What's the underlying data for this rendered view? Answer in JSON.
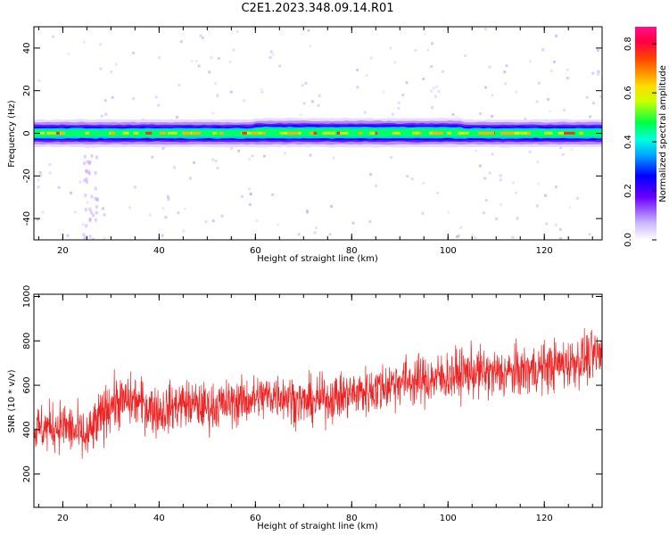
{
  "figure_title": "C2E1.2023.348.09.14.R01",
  "colors": {
    "snr_line": "#ee2222",
    "axis": "#000000"
  },
  "chart_data": [
    {
      "type": "heatmap",
      "xlabel": "Height of straight line (km)",
      "ylabel": "Frequency (Hz)",
      "xlim": [
        14,
        132
      ],
      "ylim": [
        -50,
        50
      ],
      "x_ticks": [
        20,
        40,
        60,
        80,
        100,
        120
      ],
      "y_ticks": [
        -40,
        -20,
        0,
        20,
        40
      ],
      "band_center_hz": 0,
      "band_halfwidth_hz": 4,
      "colorbar": {
        "label": "Normalized spectral amplitude",
        "range": [
          0.0,
          0.87
        ],
        "ticks": [
          0.0,
          0.2,
          0.4,
          0.6,
          0.8
        ],
        "colormap": "hsv-rainbow"
      }
    },
    {
      "type": "line",
      "xlabel": "Height of straight line (km)",
      "ylabel": "SNR (10 * v/v)",
      "xlim": [
        14,
        132
      ],
      "ylim": [
        50,
        1010
      ],
      "x_ticks": [
        20,
        40,
        60,
        80,
        100,
        120
      ],
      "y_ticks": [
        200,
        400,
        600,
        800,
        1000
      ],
      "series": [
        {
          "x": [
            14,
            20,
            25,
            30,
            35,
            40,
            45,
            50,
            55,
            60,
            65,
            70,
            75,
            80,
            85,
            90,
            95,
            100,
            105,
            110,
            115,
            120,
            125,
            132
          ],
          "mean": [
            400,
            420,
            360,
            520,
            530,
            480,
            520,
            500,
            520,
            540,
            560,
            520,
            540,
            560,
            580,
            620,
            620,
            640,
            660,
            650,
            660,
            680,
            700,
            740
          ],
          "spread": [
            140,
            150,
            160,
            160,
            150,
            150,
            140,
            140,
            140,
            140,
            140,
            140,
            140,
            140,
            150,
            150,
            150,
            150,
            150,
            150,
            150,
            150,
            150,
            160
          ]
        }
      ]
    }
  ]
}
